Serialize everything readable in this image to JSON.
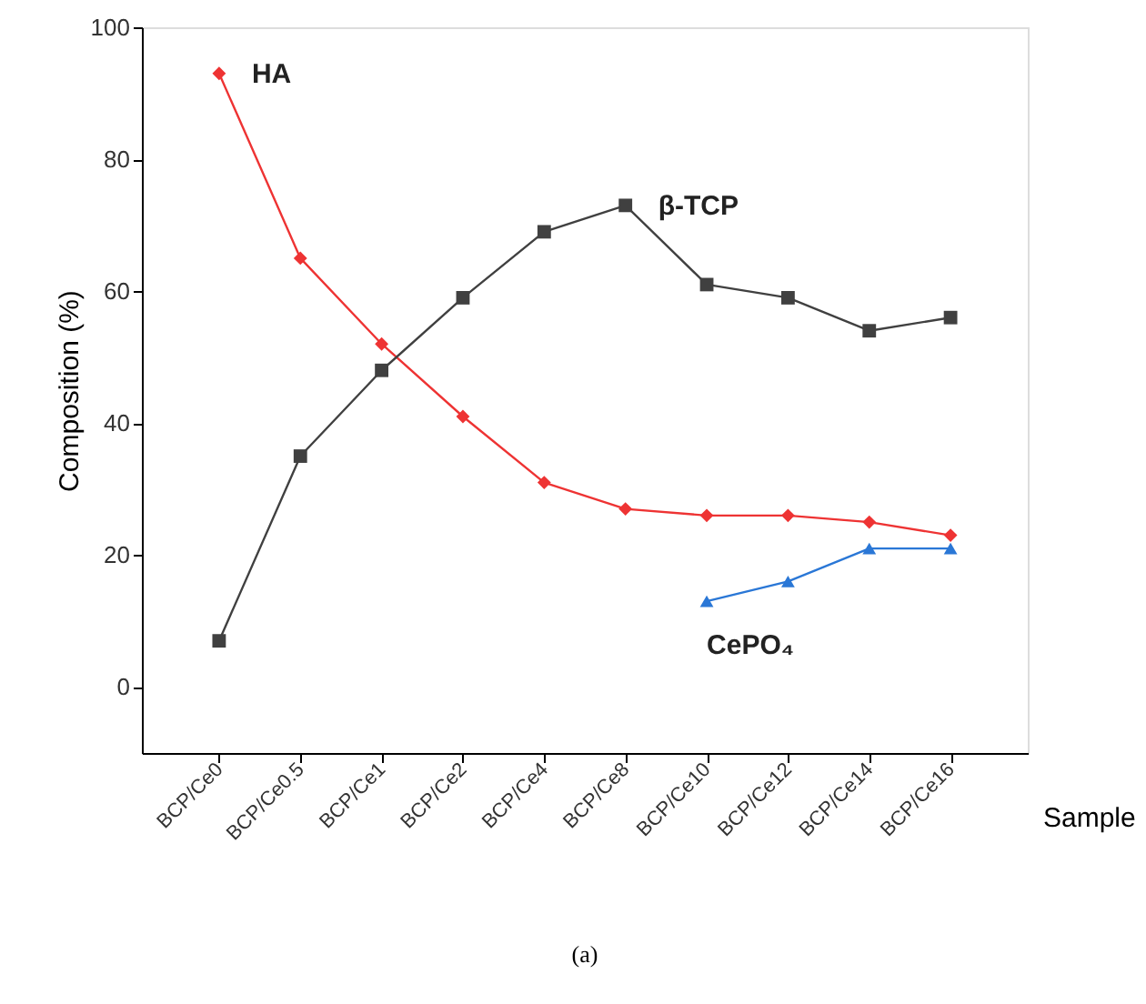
{
  "chart_data": {
    "type": "line",
    "xlabel": "Sample",
    "ylabel": "Composition (%)",
    "categories": [
      "BCP/Ce0",
      "BCP/Ce0.5",
      "BCP/Ce1",
      "BCP/Ce2",
      "BCP/Ce4",
      "BCP/Ce8",
      "BCP/Ce10",
      "BCP/Ce12",
      "BCP/Ce14",
      "BCP/Ce16"
    ],
    "series": [
      {
        "name": "HA",
        "color": "#ee3333",
        "marker": "diamond",
        "values": [
          93,
          65,
          52,
          41,
          31,
          27,
          26,
          26,
          25,
          23
        ]
      },
      {
        "name": "β-TCP",
        "color": "#404040",
        "marker": "square",
        "values": [
          7,
          35,
          48,
          59,
          69,
          73,
          61,
          59,
          54,
          56
        ]
      },
      {
        "name": "CePO₄",
        "color": "#2a77d6",
        "marker": "triangle",
        "values": [
          null,
          null,
          null,
          null,
          null,
          null,
          13,
          16,
          21,
          21
        ]
      }
    ],
    "ylim": [
      -10,
      100
    ],
    "yticks": [
      0,
      20,
      40,
      60,
      80,
      100
    ],
    "grid": false,
    "annotations": [
      "(a)"
    ]
  }
}
